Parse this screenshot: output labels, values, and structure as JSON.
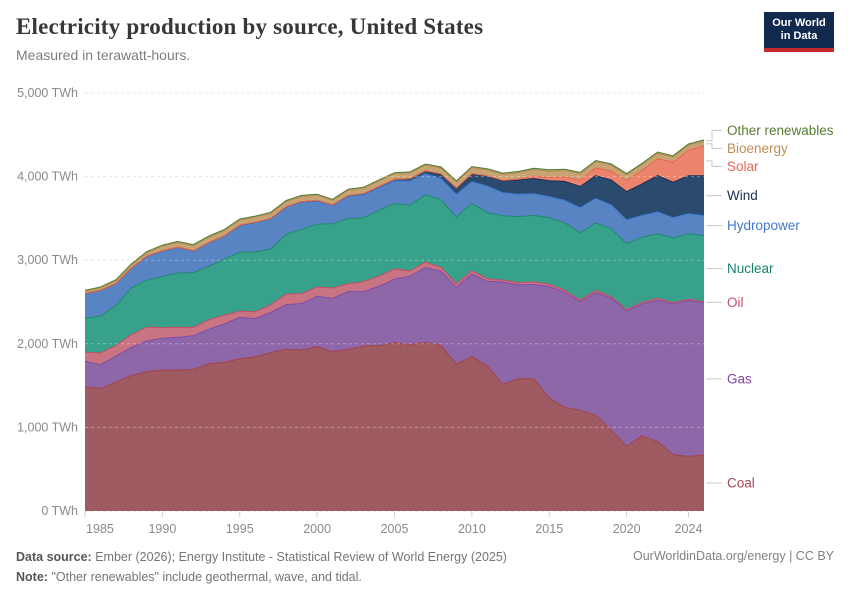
{
  "header": {
    "title": "Electricity production by source, United States",
    "subtitle": "Measured in terawatt-hours.",
    "logo_line1": "Our World",
    "logo_line2": "in Data"
  },
  "footer": {
    "source_label": "Data source:",
    "source": "Ember (2026); Energy Institute - Statistical Review of World Energy (2025)",
    "note_label": "Note:",
    "note": "\"Other renewables\" include geothermal, wave, and tidal.",
    "credit": "OurWorldinData.org/energy | CC BY"
  },
  "chart_data": {
    "type": "area",
    "stacked": true,
    "title": "Electricity production by source, United States",
    "unit": "TWh",
    "grid": "dashed",
    "legend_position": "right",
    "ylim": [
      0,
      5000
    ],
    "y_ticks": [
      0,
      1000,
      2000,
      3000,
      4000,
      5000
    ],
    "y_tick_labels": [
      "0 TWh",
      "1,000 TWh",
      "2,000 TWh",
      "3,000 TWh",
      "4,000 TWh",
      "5,000 TWh"
    ],
    "x_ticks": [
      1985,
      1990,
      1995,
      2000,
      2005,
      2010,
      2015,
      2020,
      2024
    ],
    "x_tick_labels": [
      "1985",
      "1990",
      "1995",
      "2000",
      "2005",
      "2010",
      "2015",
      "2020",
      "2024"
    ],
    "x": [
      1985,
      1986,
      1987,
      1988,
      1989,
      1990,
      1991,
      1992,
      1993,
      1994,
      1995,
      1996,
      1997,
      1998,
      1999,
      2000,
      2001,
      2002,
      2003,
      2004,
      2005,
      2006,
      2007,
      2008,
      2009,
      2010,
      2011,
      2012,
      2013,
      2014,
      2015,
      2016,
      2017,
      2018,
      2019,
      2020,
      2021,
      2022,
      2023,
      2024,
      2025
    ],
    "series": [
      {
        "name": "Coal",
        "fill": "#9E5B62",
        "stroke": "#A2434A",
        "label_color": "#A5464F",
        "values": [
          1486,
          1464,
          1544,
          1621,
          1668,
          1685,
          1686,
          1692,
          1759,
          1777,
          1820,
          1846,
          1895,
          1935,
          1926,
          1966,
          1904,
          1933,
          1974,
          1978,
          2013,
          1991,
          2016,
          1986,
          1756,
          1847,
          1733,
          1514,
          1581,
          1582,
          1352,
          1239,
          1206,
          1146,
          966,
          774,
          899,
          832,
          675,
          653,
          670
        ]
      },
      {
        "name": "Gas",
        "fill": "#8E67A9",
        "stroke": "#7D4CA8",
        "label_color": "#8246A0",
        "values": [
          307,
          285,
          310,
          335,
          367,
          382,
          392,
          404,
          415,
          460,
          496,
          455,
          479,
          531,
          556,
          601,
          639,
          691,
          650,
          710,
          761,
          816,
          897,
          883,
          921,
          988,
          1014,
          1225,
          1124,
          1127,
          1333,
          1378,
          1296,
          1468,
          1582,
          1617,
          1579,
          1689,
          1802,
          1865,
          1820
        ]
      },
      {
        "name": "Oil",
        "fill": "#C97483",
        "stroke": "#C44E66",
        "label_color": "#C85069",
        "values": [
          107,
          141,
          123,
          154,
          165,
          127,
          119,
          100,
          113,
          105,
          75,
          82,
          93,
          129,
          118,
          111,
          125,
          95,
          119,
          121,
          122,
          64,
          66,
          46,
          39,
          37,
          30,
          23,
          27,
          30,
          28,
          24,
          21,
          25,
          18,
          17,
          19,
          23,
          16,
          15,
          14
        ]
      },
      {
        "name": "Nuclear",
        "fill": "#38A18B",
        "stroke": "#1F8A6E",
        "label_color": "#1A826E",
        "values": [
          406,
          441,
          482,
          560,
          559,
          612,
          649,
          656,
          640,
          674,
          705,
          715,
          666,
          714,
          771,
          754,
          769,
          780,
          764,
          789,
          782,
          787,
          806,
          806,
          799,
          807,
          790,
          769,
          789,
          797,
          797,
          806,
          805,
          807,
          809,
          790,
          778,
          772,
          775,
          782,
          790
        ]
      },
      {
        "name": "Hydropower",
        "fill": "#5884C4",
        "stroke": "#3E78CC",
        "label_color": "#4277CE",
        "values": [
          295,
          308,
          263,
          237,
          287,
          303,
          305,
          257,
          281,
          269,
          321,
          352,
          362,
          328,
          323,
          276,
          217,
          264,
          276,
          268,
          270,
          289,
          248,
          255,
          273,
          260,
          319,
          276,
          269,
          259,
          249,
          268,
          300,
          292,
          288,
          285,
          260,
          262,
          240,
          243,
          240
        ]
      },
      {
        "name": "Wind",
        "fill": "#2A4A6E",
        "stroke": "#1D2F4E",
        "label_color": "#1D2F4E",
        "values": [
          0,
          0,
          0,
          0,
          2,
          3,
          3,
          3,
          3,
          4,
          3,
          3,
          3,
          3,
          5,
          6,
          7,
          10,
          11,
          14,
          18,
          27,
          35,
          55,
          74,
          95,
          120,
          141,
          168,
          182,
          191,
          227,
          254,
          273,
          296,
          338,
          378,
          434,
          425,
          453,
          476
        ]
      },
      {
        "name": "Solar",
        "fill": "#EB836D",
        "stroke": "#E8674F",
        "label_color": "#E8674F",
        "values": [
          0,
          0,
          0,
          0,
          0,
          0,
          0,
          0,
          0,
          0,
          1,
          1,
          1,
          1,
          1,
          1,
          1,
          1,
          1,
          1,
          1,
          1,
          1,
          2,
          2,
          2,
          4,
          7,
          12,
          29,
          39,
          55,
          77,
          93,
          107,
          132,
          164,
          201,
          238,
          303,
          355
        ]
      },
      {
        "name": "Bioenergy",
        "fill": "#C8A474",
        "stroke": "#BE8E55",
        "label_color": "#BF8E55",
        "values": [
          29,
          31,
          34,
          37,
          42,
          54,
          56,
          59,
          61,
          63,
          58,
          59,
          60,
          59,
          60,
          61,
          52,
          61,
          64,
          65,
          65,
          66,
          67,
          68,
          69,
          69,
          69,
          71,
          75,
          77,
          77,
          76,
          75,
          73,
          70,
          67,
          66,
          65,
          62,
          60,
          58
        ]
      },
      {
        "name": "Other renewables",
        "fill": "#91A877",
        "stroke": "#567D33",
        "label_color": "#567D33",
        "values": [
          9,
          10,
          11,
          12,
          14,
          15,
          15,
          16,
          16,
          15,
          14,
          14,
          14,
          14,
          15,
          14,
          14,
          14,
          14,
          15,
          15,
          15,
          15,
          15,
          15,
          15,
          16,
          16,
          16,
          16,
          16,
          16,
          16,
          16,
          16,
          16,
          16,
          16,
          16,
          16,
          16
        ]
      }
    ]
  }
}
